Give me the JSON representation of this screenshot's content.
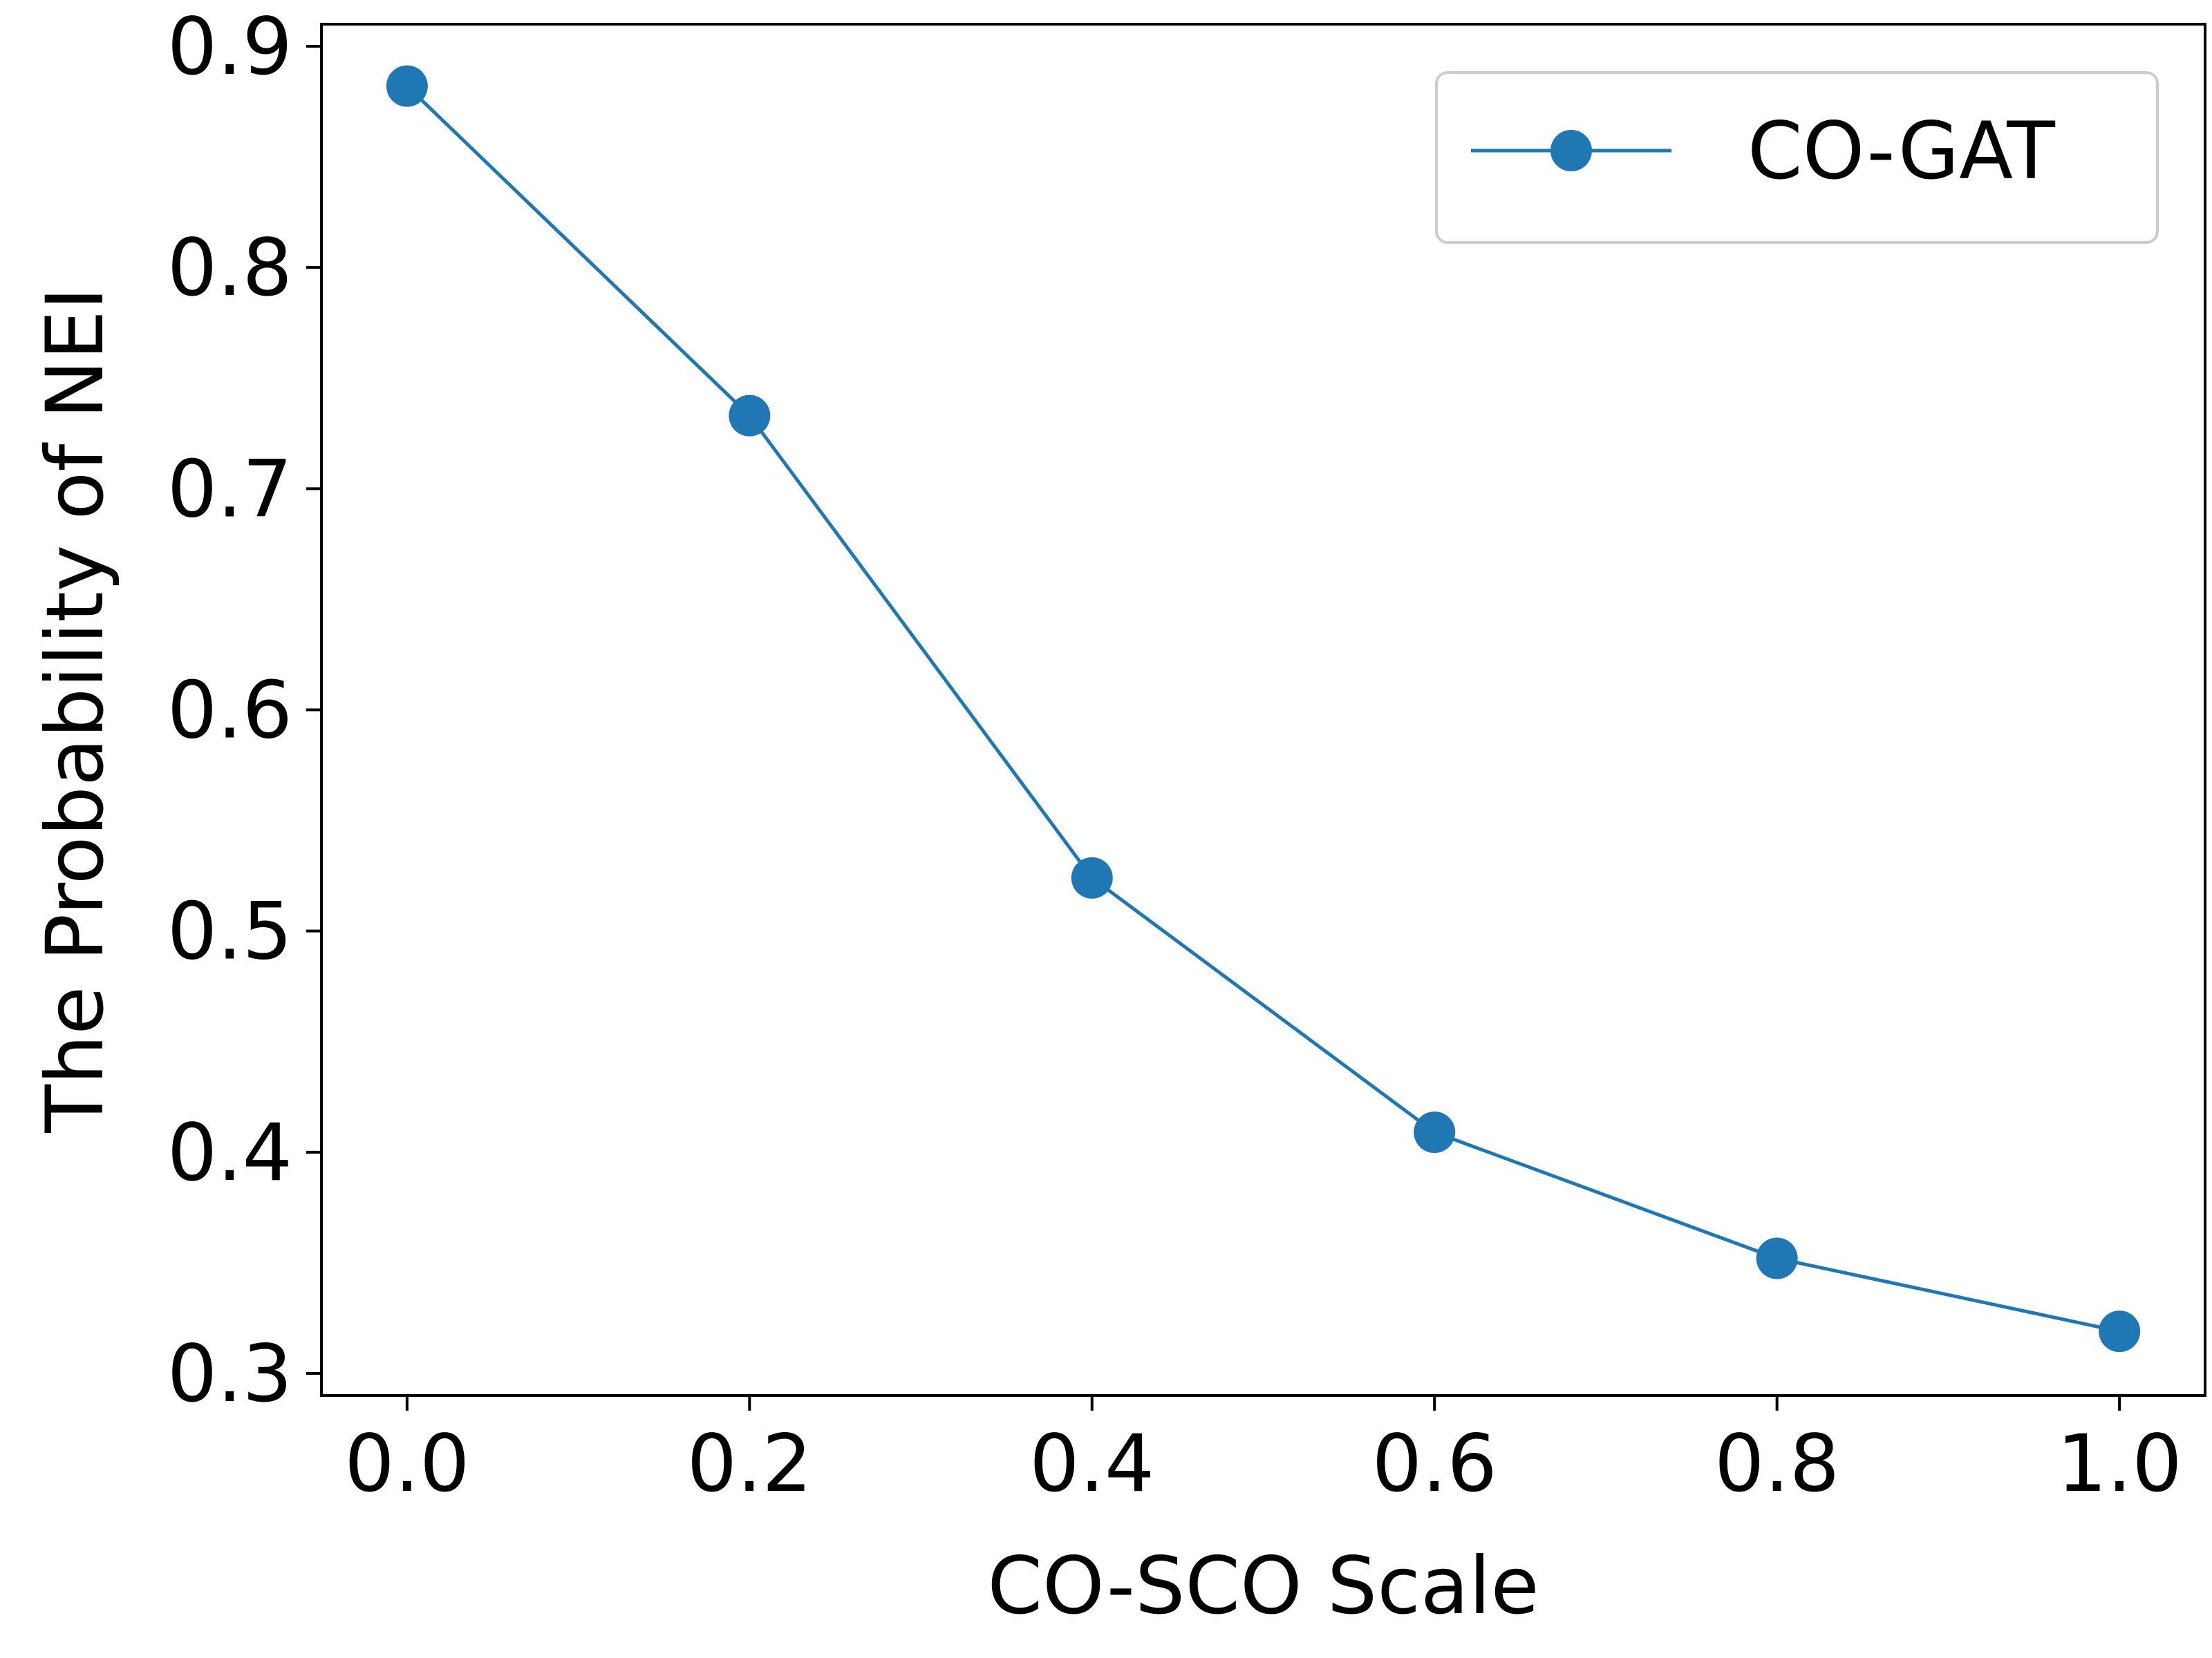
{
  "chart_data": {
    "type": "line",
    "xlabel": "CO-SCO Scale",
    "ylabel": "The Probability of NEI",
    "xlim": [
      -0.05,
      1.05
    ],
    "ylim": [
      0.29,
      0.91
    ],
    "x_ticks": [
      0.0,
      0.2,
      0.4,
      0.6,
      0.8,
      1.0
    ],
    "x_tick_labels": [
      "0.0",
      "0.2",
      "0.4",
      "0.6",
      "0.8",
      "1.0"
    ],
    "y_ticks": [
      0.3,
      0.4,
      0.5,
      0.6,
      0.7,
      0.8,
      0.9
    ],
    "y_tick_labels": [
      "0.3",
      "0.4",
      "0.5",
      "0.6",
      "0.7",
      "0.8",
      "0.9"
    ],
    "grid": false,
    "legend_position": "top-right",
    "series": [
      {
        "name": "CO-GAT",
        "color": "#1f77b4",
        "marker": "circle",
        "x": [
          0.0,
          0.2,
          0.4,
          0.6,
          0.8,
          1.0
        ],
        "y": [
          0.882,
          0.733,
          0.524,
          0.409,
          0.352,
          0.319
        ]
      }
    ]
  }
}
